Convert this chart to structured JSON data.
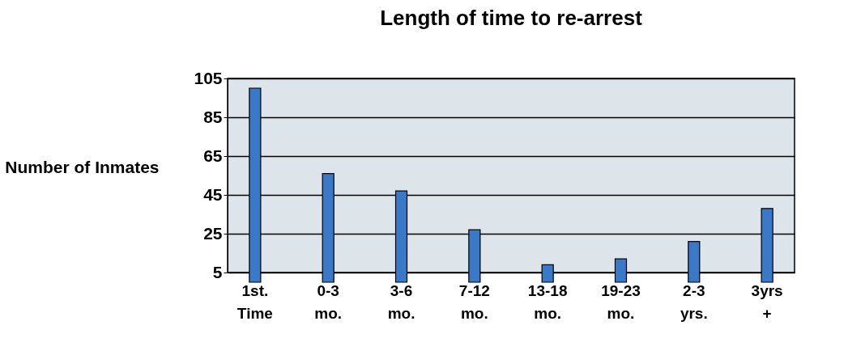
{
  "chart_data": {
    "type": "bar",
    "title": "Length of time to re-arrest",
    "ylabel": "Number of Inmates",
    "categories": [
      "1st. Time",
      "0-3 mo.",
      "3-6 mo.",
      "7-12 mo.",
      "13-18 mo.",
      "19-23 mo.",
      "2-3 yrs.",
      "3yrs +"
    ],
    "values": [
      100,
      56,
      47,
      27,
      9,
      12,
      21,
      38
    ],
    "color": "#3a78c8",
    "ylim": [
      5,
      105
    ],
    "yticks": [
      5,
      25,
      45,
      65,
      85,
      105
    ],
    "grid": true
  }
}
